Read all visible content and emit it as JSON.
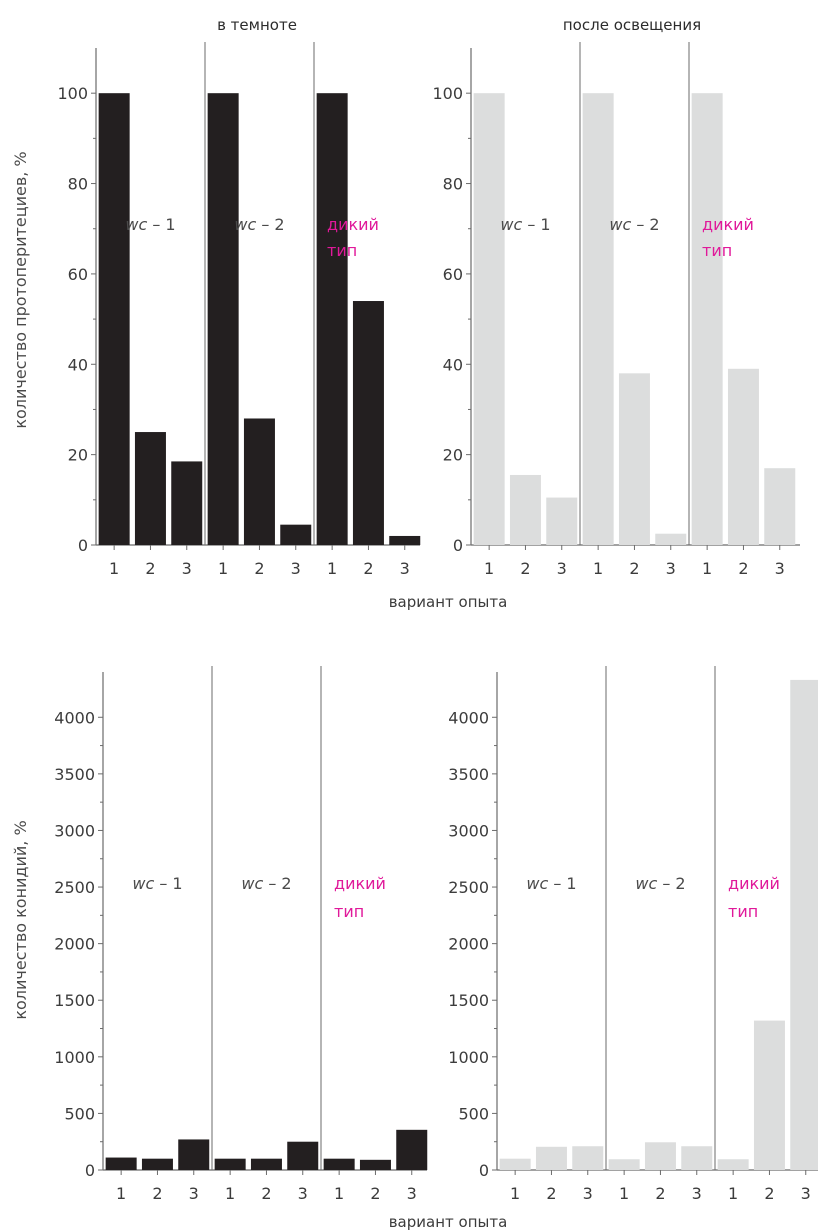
{
  "colors": {
    "dark": "#231f20",
    "light": "#dcdddd",
    "accent": "#e0199a",
    "axis": "#6b6b6b"
  },
  "labels": {
    "top_ylabel": "количество протоперитециев, %",
    "bottom_ylabel": "количество конидий, %",
    "xlabel": "вариант опыта"
  },
  "chart_data": [
    {
      "type": "bar",
      "title": "в темноте",
      "groups": [
        "wc – 1",
        "wc – 2",
        "дикий тип"
      ],
      "categories": [
        "1",
        "2",
        "3"
      ],
      "values": [
        [
          100,
          25,
          18.5
        ],
        [
          100,
          28,
          4.5
        ],
        [
          100,
          54,
          2
        ]
      ],
      "ylim": [
        0,
        110
      ],
      "yticks": [
        0,
        20,
        40,
        60,
        80,
        100
      ],
      "color": "#231f20"
    },
    {
      "type": "bar",
      "title": "после освещения",
      "groups": [
        "wc – 1",
        "wc – 2",
        "дикий тип"
      ],
      "categories": [
        "1",
        "2",
        "3"
      ],
      "values": [
        [
          100,
          15.5,
          10.5
        ],
        [
          100,
          38,
          2.5
        ],
        [
          100,
          39,
          17
        ]
      ],
      "ylim": [
        0,
        110
      ],
      "yticks": [
        0,
        20,
        40,
        60,
        80,
        100
      ],
      "color": "#dcdddd"
    },
    {
      "type": "bar",
      "title": "",
      "groups": [
        "wc – 1",
        "wc – 2",
        "дикий тип"
      ],
      "categories": [
        "1",
        "2",
        "3"
      ],
      "values": [
        [
          110,
          100,
          270
        ],
        [
          100,
          100,
          250
        ],
        [
          100,
          90,
          355
        ]
      ],
      "ylim": [
        0,
        4400
      ],
      "yticks": [
        0,
        500,
        1000,
        1500,
        2000,
        2500,
        3000,
        3500,
        4000
      ],
      "color": "#231f20"
    },
    {
      "type": "bar",
      "title": "",
      "groups": [
        "wc – 1",
        "wc – 2",
        "дикий тип"
      ],
      "categories": [
        "1",
        "2",
        "3"
      ],
      "values": [
        [
          100,
          205,
          210
        ],
        [
          95,
          245,
          210
        ],
        [
          95,
          1320,
          4330
        ]
      ],
      "ylim": [
        0,
        4400
      ],
      "yticks": [
        0,
        500,
        1000,
        1500,
        2000,
        2500,
        3000,
        3500,
        4000
      ],
      "color": "#dcdddd"
    }
  ]
}
